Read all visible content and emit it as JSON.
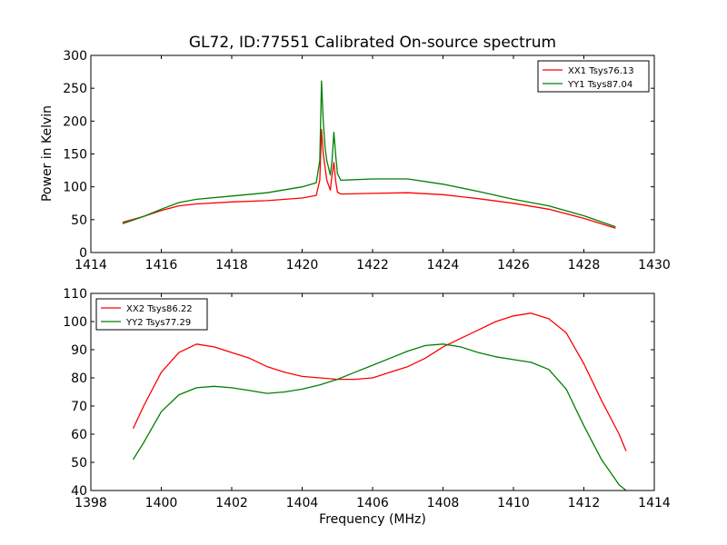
{
  "chart_data": [
    {
      "type": "line",
      "title": "GL72, ID:77551 Calibrated On-source spectrum",
      "xlabel": "",
      "ylabel": "Power in Kelvin",
      "xlim": [
        1414,
        1430
      ],
      "ylim": [
        0,
        300
      ],
      "xticks": [
        1414,
        1416,
        1418,
        1420,
        1422,
        1424,
        1426,
        1428,
        1430
      ],
      "yticks": [
        0,
        50,
        100,
        150,
        200,
        250,
        300
      ],
      "legend_position": "top-right",
      "series": [
        {
          "name": "XX1 Tsys76.13",
          "color": "#ff0000",
          "x": [
            1414.9,
            1415.5,
            1416.0,
            1416.5,
            1417.0,
            1418.0,
            1419.0,
            1420.0,
            1420.4,
            1420.5,
            1420.55,
            1420.6,
            1420.65,
            1420.7,
            1420.8,
            1420.85,
            1420.9,
            1420.95,
            1421.0,
            1421.1,
            1422.0,
            1423.0,
            1424.0,
            1425.0,
            1426.0,
            1427.0,
            1428.0,
            1428.9
          ],
          "y": [
            46,
            55,
            64,
            71,
            74,
            77,
            79,
            83,
            87,
            110,
            187,
            150,
            130,
            110,
            95,
            118,
            137,
            110,
            92,
            89,
            90,
            91,
            88,
            82,
            75,
            66,
            52,
            37
          ]
        },
        {
          "name": "YY1 Tsys87.04",
          "color": "#008000",
          "x": [
            1414.9,
            1415.5,
            1416.0,
            1416.5,
            1417.0,
            1418.0,
            1419.0,
            1420.0,
            1420.4,
            1420.5,
            1420.55,
            1420.6,
            1420.65,
            1420.7,
            1420.8,
            1420.85,
            1420.9,
            1420.95,
            1421.0,
            1421.1,
            1422.0,
            1423.0,
            1424.0,
            1425.0,
            1426.0,
            1427.0,
            1428.0,
            1428.9
          ],
          "y": [
            44,
            55,
            66,
            76,
            81,
            86,
            91,
            100,
            106,
            140,
            261,
            200,
            160,
            140,
            118,
            140,
            183,
            150,
            120,
            110,
            112,
            112,
            104,
            93,
            81,
            71,
            56,
            39
          ]
        }
      ]
    },
    {
      "type": "line",
      "title": "",
      "xlabel": "Frequency (MHz)",
      "ylabel": "",
      "xlim": [
        1398,
        1414
      ],
      "ylim": [
        40,
        110
      ],
      "xticks": [
        1398,
        1400,
        1402,
        1404,
        1406,
        1408,
        1410,
        1412,
        1414
      ],
      "yticks": [
        40,
        50,
        60,
        70,
        80,
        90,
        100,
        110
      ],
      "legend_position": "top-left",
      "series": [
        {
          "name": "XX2 Tsys86.22",
          "color": "#ff0000",
          "x": [
            1399.2,
            1399.5,
            1400.0,
            1400.5,
            1401.0,
            1401.5,
            1402.0,
            1402.5,
            1403.0,
            1403.5,
            1404.0,
            1404.5,
            1405.0,
            1405.5,
            1406.0,
            1406.5,
            1407.0,
            1407.5,
            1408.0,
            1408.5,
            1409.0,
            1409.5,
            1410.0,
            1410.5,
            1411.0,
            1411.5,
            1412.0,
            1412.5,
            1413.0,
            1413.2
          ],
          "y": [
            62,
            70,
            82,
            89,
            92,
            91,
            89,
            87,
            84,
            82,
            80.5,
            80,
            79.5,
            79.5,
            80,
            82,
            84,
            87,
            91,
            94,
            97,
            100,
            102,
            103,
            101,
            96,
            85,
            72,
            60,
            54
          ]
        },
        {
          "name": "YY2 Tsys77.29",
          "color": "#008000",
          "x": [
            1399.2,
            1399.5,
            1400.0,
            1400.5,
            1401.0,
            1401.5,
            1402.0,
            1402.5,
            1403.0,
            1403.5,
            1404.0,
            1404.5,
            1405.0,
            1405.5,
            1406.0,
            1406.5,
            1407.0,
            1407.5,
            1408.0,
            1408.5,
            1409.0,
            1409.5,
            1410.0,
            1410.5,
            1411.0,
            1411.5,
            1412.0,
            1412.5,
            1413.0,
            1413.2
          ],
          "y": [
            51,
            57,
            68,
            74,
            76.5,
            77,
            76.5,
            75.5,
            74.5,
            75,
            76,
            77.5,
            79.5,
            82,
            84.5,
            87,
            89.5,
            91.5,
            92,
            91,
            89,
            87.5,
            86.5,
            85.5,
            83,
            76,
            63,
            51,
            42,
            40
          ]
        }
      ]
    }
  ]
}
